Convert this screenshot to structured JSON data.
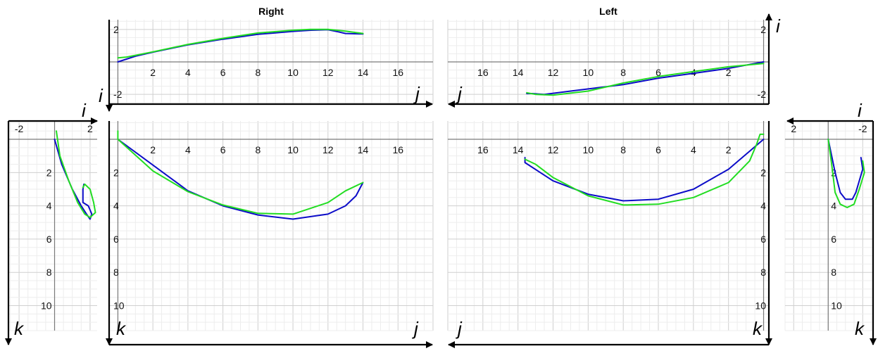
{
  "colors": {
    "blue": "#0c0cc8",
    "green": "#22dd22",
    "minor_grid": "#ededed",
    "major_grid": "#cfcfcf",
    "zero": "#7a7a7a"
  },
  "chart_data": [
    {
      "id": "right_top",
      "type": "line",
      "title": "Right",
      "xlabel": "j",
      "ylabel": "i",
      "xlim": [
        -0.5,
        18
      ],
      "ylim": [
        -2.6,
        2.6
      ],
      "x_ticks": [
        2,
        4,
        6,
        8,
        10,
        12,
        14,
        16
      ],
      "y_ticks": [
        -2,
        2
      ],
      "x_tick_labels_on": "zero",
      "series": [
        {
          "color": "blue",
          "points": [
            [
              0,
              0
            ],
            [
              1,
              0.35
            ],
            [
              2,
              0.6
            ],
            [
              4,
              1.05
            ],
            [
              6,
              1.4
            ],
            [
              8,
              1.7
            ],
            [
              10,
              1.88
            ],
            [
              11,
              1.95
            ],
            [
              12,
              1.98
            ],
            [
              12.6,
              1.85
            ],
            [
              13,
              1.75
            ],
            [
              14,
              1.72
            ]
          ]
        },
        {
          "color": "green",
          "points": [
            [
              0,
              0.25
            ],
            [
              0.5,
              0.3
            ],
            [
              2,
              0.62
            ],
            [
              4,
              1.08
            ],
            [
              6,
              1.45
            ],
            [
              8,
              1.78
            ],
            [
              10,
              1.95
            ],
            [
              11,
              2.0
            ],
            [
              12,
              2.0
            ],
            [
              13,
              1.9
            ],
            [
              14,
              1.75
            ]
          ]
        }
      ]
    },
    {
      "id": "left_top",
      "type": "line",
      "title": "Left",
      "xlabel": "j",
      "ylabel": "i",
      "xlim": [
        18,
        -0.3
      ],
      "ylim": [
        -2.6,
        2.6
      ],
      "x_ticks": [
        16,
        14,
        12,
        10,
        8,
        6,
        4,
        2
      ],
      "y_ticks": [
        -2,
        2
      ],
      "x_tick_labels_on": "zero",
      "series": [
        {
          "color": "blue",
          "points": [
            [
              13.5,
              -1.95
            ],
            [
              13.2,
              -1.95
            ],
            [
              12.5,
              -2.0
            ],
            [
              11,
              -1.8
            ],
            [
              8,
              -1.4
            ],
            [
              6,
              -1.0
            ],
            [
              4,
              -0.7
            ],
            [
              2,
              -0.4
            ],
            [
              0,
              0
            ]
          ]
        },
        {
          "color": "green",
          "points": [
            [
              13.5,
              -1.9
            ],
            [
              13,
              -2.0
            ],
            [
              12,
              -2.05
            ],
            [
              10,
              -1.8
            ],
            [
              8,
              -1.3
            ],
            [
              6,
              -0.9
            ],
            [
              4,
              -0.6
            ],
            [
              2,
              -0.3
            ],
            [
              0,
              -0.1
            ]
          ]
        }
      ]
    },
    {
      "id": "left_side",
      "type": "line",
      "xlabel": "i",
      "ylabel": "k",
      "xlim": [
        -2.6,
        2.4
      ],
      "ylim": [
        -1.1,
        11.5
      ],
      "y_inverted": true,
      "x_ticks": [
        -2,
        2
      ],
      "y_ticks": [
        2,
        4,
        6,
        8,
        10
      ],
      "series": [
        {
          "color": "blue",
          "points": [
            [
              0,
              0
            ],
            [
              0.4,
              1.5
            ],
            [
              1.0,
              3.0
            ],
            [
              1.5,
              4.0
            ],
            [
              1.8,
              4.5
            ],
            [
              2.0,
              4.8
            ],
            [
              2.1,
              4.5
            ],
            [
              1.9,
              4.0
            ],
            [
              1.6,
              3.8
            ],
            [
              1.6,
              3.0
            ],
            [
              1.65,
              2.7
            ]
          ]
        },
        {
          "color": "green",
          "points": [
            [
              0.1,
              -0.5
            ],
            [
              0.3,
              1.0
            ],
            [
              0.8,
              2.5
            ],
            [
              1.3,
              3.8
            ],
            [
              1.7,
              4.5
            ],
            [
              2.0,
              4.7
            ],
            [
              2.3,
              4.4
            ],
            [
              2.2,
              3.8
            ],
            [
              2.0,
              3.0
            ],
            [
              1.7,
              2.7
            ],
            [
              1.6,
              2.9
            ]
          ]
        }
      ]
    },
    {
      "id": "right_main",
      "type": "line",
      "xlabel": "j",
      "ylabel": "k",
      "xlim": [
        -0.5,
        18
      ],
      "ylim": [
        -1.1,
        11.5
      ],
      "y_inverted": true,
      "x_ticks": [
        2,
        4,
        6,
        8,
        10,
        12,
        14,
        16
      ],
      "y_ticks": [
        2,
        4,
        6,
        8,
        10
      ],
      "x_tick_labels_on": "zero",
      "series": [
        {
          "color": "blue",
          "points": [
            [
              0,
              0
            ],
            [
              2,
              1.55
            ],
            [
              4,
              3.1
            ],
            [
              6,
              4.0
            ],
            [
              8,
              4.55
            ],
            [
              10,
              4.8
            ],
            [
              12,
              4.5
            ],
            [
              13,
              4.0
            ],
            [
              13.6,
              3.4
            ],
            [
              14,
              2.6
            ]
          ]
        },
        {
          "color": "green",
          "points": [
            [
              0,
              -0.5
            ],
            [
              0,
              0
            ],
            [
              2,
              1.9
            ],
            [
              4,
              3.15
            ],
            [
              6,
              3.95
            ],
            [
              8,
              4.45
            ],
            [
              10,
              4.5
            ],
            [
              12,
              3.8
            ],
            [
              13,
              3.1
            ],
            [
              14,
              2.6
            ]
          ]
        }
      ]
    },
    {
      "id": "left_main",
      "type": "line",
      "xlabel": "j",
      "ylabel": "k",
      "xlim": [
        18,
        -0.3
      ],
      "ylim": [
        -1.1,
        11.5
      ],
      "y_inverted": true,
      "x_ticks": [
        16,
        14,
        12,
        10,
        8,
        6,
        4,
        2
      ],
      "y_ticks": [
        2,
        4,
        6,
        8,
        10
      ],
      "x_tick_labels_on": "zero",
      "series": [
        {
          "color": "blue",
          "points": [
            [
              13.6,
              1.1
            ],
            [
              13.6,
              1.4
            ],
            [
              12,
              2.5
            ],
            [
              10,
              3.3
            ],
            [
              8,
              3.7
            ],
            [
              6,
              3.6
            ],
            [
              4,
              3.0
            ],
            [
              2,
              1.8
            ],
            [
              0,
              0
            ]
          ]
        },
        {
          "color": "green",
          "points": [
            [
              13.6,
              1.2
            ],
            [
              13,
              1.5
            ],
            [
              12,
              2.3
            ],
            [
              10,
              3.4
            ],
            [
              8,
              3.95
            ],
            [
              6,
              3.9
            ],
            [
              4,
              3.5
            ],
            [
              2,
              2.6
            ],
            [
              0.8,
              1.3
            ],
            [
              0.4,
              0.3
            ],
            [
              0.2,
              -0.3
            ],
            [
              0,
              -0.3
            ]
          ]
        }
      ]
    },
    {
      "id": "right_side",
      "type": "line",
      "xlabel": "i",
      "ylabel": "k",
      "xlim": [
        2.5,
        -2.6
      ],
      "ylim": [
        -1.1,
        11.5
      ],
      "y_inverted": true,
      "x_ticks": [
        2,
        -2
      ],
      "y_ticks": [
        2,
        4,
        6,
        8,
        10
      ],
      "series": [
        {
          "color": "blue",
          "points": [
            [
              0,
              0
            ],
            [
              -0.4,
              2.0
            ],
            [
              -0.7,
              3.2
            ],
            [
              -1.0,
              3.6
            ],
            [
              -1.4,
              3.6
            ],
            [
              -1.6,
              3.2
            ],
            [
              -1.8,
              2.5
            ],
            [
              -2.0,
              1.8
            ],
            [
              -1.9,
              1.1
            ]
          ]
        },
        {
          "color": "green",
          "points": [
            [
              0,
              0
            ],
            [
              -0.2,
              1.5
            ],
            [
              -0.4,
              3.2
            ],
            [
              -0.7,
              3.9
            ],
            [
              -1.1,
              4.1
            ],
            [
              -1.5,
              3.9
            ],
            [
              -1.8,
              3.0
            ],
            [
              -2.1,
              2.0
            ],
            [
              -2.0,
              1.3
            ]
          ]
        }
      ]
    }
  ]
}
